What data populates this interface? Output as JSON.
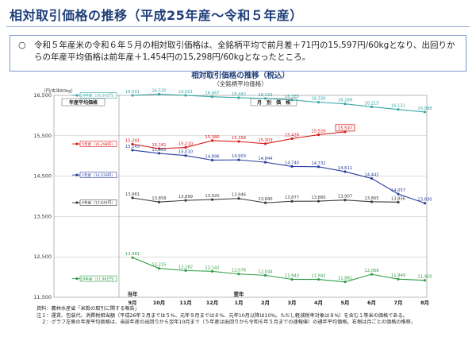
{
  "page": {
    "title": "相対取引価格の推移（平成25年産～令和５年産）",
    "note_bullet": "○",
    "note": "令和５年産米の令和６年５月の相対取引価格は、全銘柄平均で前月差＋71円の15,597円/60kgとなり、出回りからの年産平均価格は前年産＋1,454円の15,298円/60kgとなったところ。",
    "footer_lines": [
      "資料：農林水産省「米穀の取引に関する報告」",
      "注１：運賃、包装代、消費税相当額（平成26年３月までは５%、元年９月までは８%、元年10月以降は10%。ただし軽減税率対象は８%）を含む１等米の価格である。",
      "　２：グラフ左側の年産平均価格は、当該年産の出回りから翌年10月まで（５年産は出回りから令和６年５月までの速報値）の通年平均価格。右側は月ごとの価格の推移。"
    ]
  },
  "chart_data": {
    "type": "line",
    "title": "相対取引価格の推移（税込）",
    "subtitle": "（全銘柄平均価格）",
    "unit_label": "（円/玄米60kg）",
    "y_ticks": [
      "16,500",
      "15,500",
      "14,500",
      "13,500",
      "12,500",
      "11,500"
    ],
    "ylim": [
      11500,
      16500
    ],
    "annual_panel_label": "年産平均価格",
    "monthly_panel_label": "月　別　価　格",
    "year_marks": [
      "当年",
      "翌年"
    ],
    "categories": [
      "9月",
      "10月",
      "11月",
      "12月",
      "1月",
      "2月",
      "3月",
      "4月",
      "5月",
      "6月",
      "7月",
      "8月"
    ],
    "series": [
      {
        "name": "5年産（15,298円）",
        "color": "#d81b1b",
        "annual": 15298,
        "values": [
          15291,
          15181,
          15210,
          15380,
          15358,
          15303,
          15428,
          15526,
          15597,
          null,
          null,
          null
        ],
        "labels": [
          "15,291",
          "15,181",
          "15,210",
          "15,380",
          "15,358",
          "15,303",
          "15,428",
          "15,526",
          "15,597",
          "",
          "",
          ""
        ]
      },
      {
        "name": "2年産（14,529円）",
        "color": "#2a3f9e",
        "annual": 14529,
        "values": [
          15143,
          15065,
          15010,
          14896,
          14903,
          14844,
          14740,
          14732,
          14611,
          14442,
          14057,
          13830
        ],
        "labels": [
          "15,143",
          "15,065",
          "15,010",
          "14,896",
          "14,903",
          "14,844",
          "14,740",
          "14,732",
          "14,611",
          "14,442",
          "14,057",
          "13,830"
        ]
      },
      {
        "name": "24年産（16,501円）",
        "color": "#3aa7a7",
        "annual": 16501,
        "values": [
          16501,
          16530,
          16501,
          16467,
          16442,
          16423,
          16385,
          16330,
          16289,
          16215,
          16151,
          16088
        ],
        "labels": [
          "16,501",
          "16,530",
          "16,501",
          "16,467",
          "16,442",
          "16,423",
          "16,385",
          "16,330",
          "16,289",
          "16,215",
          "16,151",
          "16,088"
        ]
      },
      {
        "name": "4年産（13,844円）",
        "color": "#3d3d3d",
        "annual": 13844,
        "values": [
          13961,
          13858,
          13899,
          13920,
          13946,
          13840,
          13877,
          13880,
          13907,
          13865,
          13856,
          null
        ],
        "labels": [
          "13,961",
          "13,858",
          "13,899",
          "13,920",
          "13,946",
          "13,840",
          "13,877",
          "13,880",
          "13,907",
          "13,865",
          "13,856",
          ""
        ]
      },
      {
        "name": "29年産（11,961円）",
        "color": "#2f9e44",
        "annual": 11961,
        "values": [
          12481,
          12215,
          12162,
          12142,
          12076,
          12044,
          11943,
          11942,
          11881,
          12068,
          11949,
          11920
        ],
        "labels": [
          "12,481",
          "12,215",
          "12,162",
          "12,142",
          "12,076",
          "12,044",
          "11,943",
          "11,942",
          "11,881",
          "12,068",
          "11,949",
          "11,920"
        ]
      }
    ]
  }
}
